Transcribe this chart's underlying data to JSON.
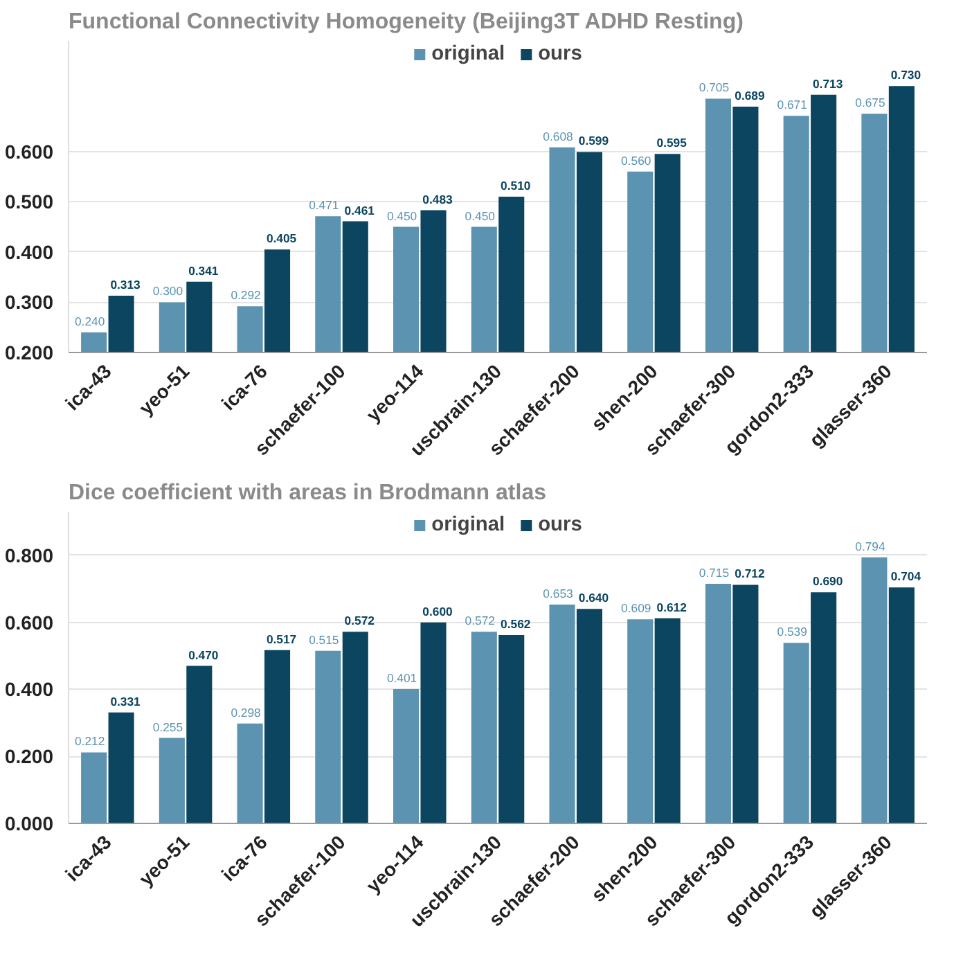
{
  "chart_data": [
    {
      "type": "bar",
      "title": "Functional Connectivity Homogeneity (Beijing3T ADHD Resting)",
      "categories": [
        "ica-43",
        "yeo-51",
        "ica-76",
        "schaefer-100",
        "yeo-114",
        "uscbrain-130",
        "schaefer-200",
        "shen-200",
        "schaefer-300",
        "gordon2-333",
        "glasser-360"
      ],
      "series": [
        {
          "name": "original",
          "color": "#5b93b1",
          "values": [
            0.24,
            0.3,
            0.292,
            0.471,
            0.45,
            0.45,
            0.608,
            0.56,
            0.705,
            0.671,
            0.675
          ],
          "value_labels": [
            "0.240",
            "0.300",
            "0.292",
            "0.471",
            "0.450",
            "0.450",
            "0.608",
            "0.560",
            "0.705",
            "0.671",
            "0.675"
          ]
        },
        {
          "name": "ours",
          "color": "#0b4560",
          "values": [
            0.313,
            0.341,
            0.405,
            0.461,
            0.483,
            0.51,
            0.599,
            0.595,
            0.689,
            0.713,
            0.73
          ],
          "value_labels": [
            "0.313",
            "0.341",
            "0.405",
            "0.461",
            "0.483",
            "0.510",
            "0.599",
            "0.595",
            "0.689",
            "0.713",
            "0.730"
          ]
        }
      ],
      "ylim": [
        0.2,
        0.82
      ],
      "yticks": [
        {
          "value": 0.2,
          "label": "0.200"
        },
        {
          "value": 0.3,
          "label": "0.300"
        },
        {
          "value": 0.4,
          "label": "0.400"
        },
        {
          "value": 0.5,
          "label": "0.500"
        },
        {
          "value": 0.6,
          "label": "0.600"
        }
      ],
      "grid": "y",
      "legend": "top",
      "data_labels": true
    },
    {
      "type": "bar",
      "title": "Dice coefficient with areas in Brodmann atlas",
      "categories": [
        "ica-43",
        "yeo-51",
        "ica-76",
        "schaefer-100",
        "yeo-114",
        "uscbrain-130",
        "schaefer-200",
        "shen-200",
        "schaefer-300",
        "gordon2-333",
        "glasser-360"
      ],
      "series": [
        {
          "name": "original",
          "color": "#5b93b1",
          "values": [
            0.212,
            0.255,
            0.298,
            0.515,
            0.401,
            0.572,
            0.653,
            0.609,
            0.715,
            0.539,
            0.794
          ],
          "value_labels": [
            "0.212",
            "0.255",
            "0.298",
            "0.515",
            "0.401",
            "0.572",
            "0.653",
            "0.609",
            "0.715",
            "0.539",
            "0.794"
          ]
        },
        {
          "name": "ours",
          "color": "#0b4560",
          "values": [
            0.331,
            0.47,
            0.517,
            0.572,
            0.6,
            0.562,
            0.64,
            0.612,
            0.712,
            0.69,
            0.704
          ],
          "value_labels": [
            "0.331",
            "0.470",
            "0.517",
            "0.572",
            "0.600",
            "0.562",
            "0.640",
            "0.612",
            "0.712",
            "0.690",
            "0.704"
          ]
        }
      ],
      "ylim": [
        0,
        0.93
      ],
      "yticks": [
        {
          "value": 0,
          "label": "0.000"
        },
        {
          "value": 0.2,
          "label": "0.200"
        },
        {
          "value": 0.4,
          "label": "0.400"
        },
        {
          "value": 0.6,
          "label": "0.600"
        },
        {
          "value": 0.8,
          "label": "0.800"
        }
      ],
      "grid": "y",
      "legend": "top",
      "data_labels": true
    }
  ]
}
